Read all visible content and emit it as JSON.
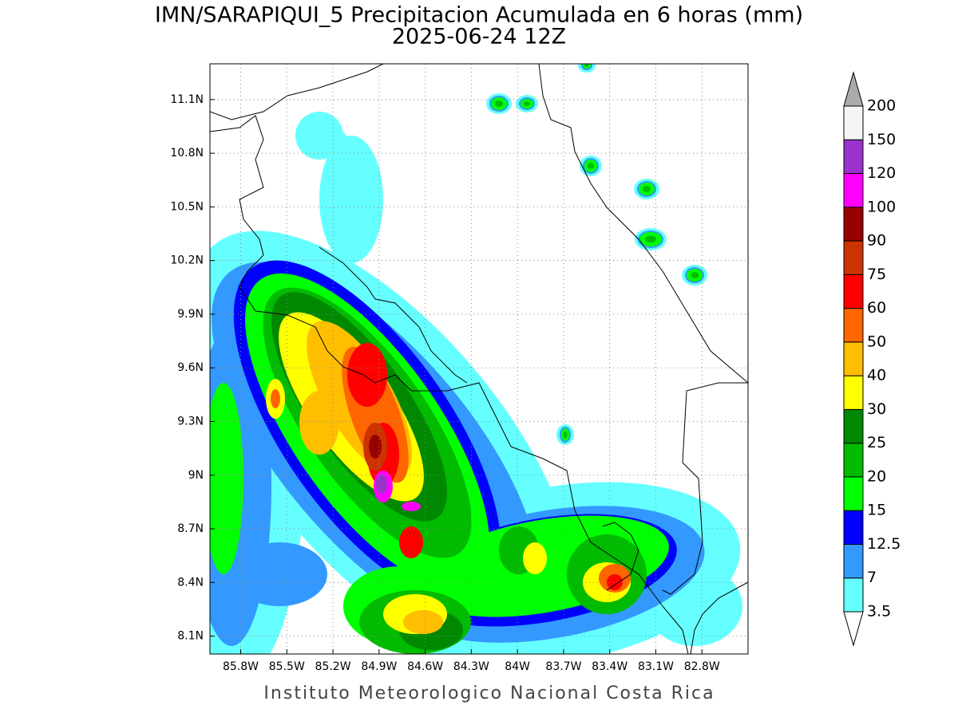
{
  "title": "IMN/SARAPIQUI_5 Precipitacion Acumulada en 6 horas (mm)",
  "subtitle": "2025-06-24 12Z",
  "footer": "Instituto Meteorologico Nacional Costa Rica",
  "map": {
    "xlim": [
      -86.0,
      -82.5
    ],
    "ylim": [
      8.0,
      11.3
    ],
    "xticks": [
      {
        "value": -85.8,
        "label": "85.8W"
      },
      {
        "value": -85.5,
        "label": "85.5W"
      },
      {
        "value": -85.2,
        "label": "85.2W"
      },
      {
        "value": -84.9,
        "label": "84.9W"
      },
      {
        "value": -84.6,
        "label": "84.6W"
      },
      {
        "value": -84.3,
        "label": "84.3W"
      },
      {
        "value": -84.0,
        "label": "84W"
      },
      {
        "value": -83.7,
        "label": "83.7W"
      },
      {
        "value": -83.4,
        "label": "83.4W"
      },
      {
        "value": -83.1,
        "label": "83.1W"
      },
      {
        "value": -82.8,
        "label": "82.8W"
      }
    ],
    "yticks": [
      {
        "value": 8.1,
        "label": "8.1N"
      },
      {
        "value": 8.4,
        "label": "8.4N"
      },
      {
        "value": 8.7,
        "label": "8.7N"
      },
      {
        "value": 9.0,
        "label": "9N"
      },
      {
        "value": 9.3,
        "label": "9.3N"
      },
      {
        "value": 9.6,
        "label": "9.6N"
      },
      {
        "value": 9.9,
        "label": "9.9N"
      },
      {
        "value": 10.2,
        "label": "10.2N"
      },
      {
        "value": 10.5,
        "label": "10.5N"
      },
      {
        "value": 10.8,
        "label": "10.8N"
      },
      {
        "value": 11.1,
        "label": "11.1N"
      }
    ],
    "grid": true
  },
  "colorbar": {
    "levels": [
      3.5,
      7,
      12.5,
      15,
      20,
      25,
      30,
      40,
      50,
      60,
      75,
      90,
      100,
      120,
      150,
      200
    ],
    "colors": [
      "#66ffff",
      "#3399ff",
      "#0000ff",
      "#00ff00",
      "#00bb00",
      "#008800",
      "#ffff00",
      "#ffbf00",
      "#ff6600",
      "#ff0000",
      "#cc3300",
      "#990000",
      "#ff00ff",
      "#9933cc",
      "#f5f5f5"
    ],
    "over_color": "#aaaaaa",
    "under_color": "#ffffff"
  }
}
